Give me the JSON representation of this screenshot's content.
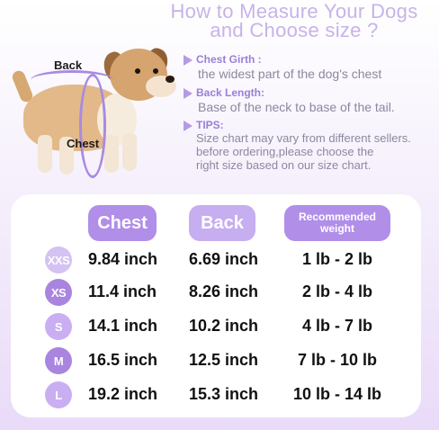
{
  "title": {
    "line1": "How to Measure Your Dogs",
    "line2": "and Choose size ?"
  },
  "illustration": {
    "back_label": "Back",
    "chest_label": "Chest"
  },
  "info": {
    "chest_girth": {
      "heading": "Chest Girth :",
      "text": "the widest part of the dog's chest"
    },
    "back_length": {
      "heading": "Back Length:",
      "text": "Base of the neck to base of the tail."
    },
    "tips": {
      "heading": "TIPS:",
      "lines": [
        "Size chart may vary from different sellers.",
        "before ordering,please choose the",
        "right size based on our size chart."
      ]
    }
  },
  "table": {
    "headers": {
      "chest": "Chest",
      "back": "Back",
      "weight_line1": "Recommended",
      "weight_line2": "weight"
    },
    "rows": [
      {
        "size": "XXS",
        "chest": "9.84 inch",
        "back": "6.69 inch",
        "weight": "1 lb - 2 lb",
        "badge_color": "#d4c2f2"
      },
      {
        "size": "XS",
        "chest": "11.4 inch",
        "back": "8.26 inch",
        "weight": "2 lb - 4 lb",
        "badge_color": "#a985e0"
      },
      {
        "size": "S",
        "chest": "14.1 inch",
        "back": "10.2 inch",
        "weight": "4 lb - 7 lb",
        "badge_color": "#caaef2"
      },
      {
        "size": "M",
        "chest": "16.5 inch",
        "back": "12.5 inch",
        "weight": "7 lb - 10 lb",
        "badge_color": "#a985e0"
      },
      {
        "size": "L",
        "chest": "19.2 inch",
        "back": "15.3 inch",
        "weight": "10 lb - 14 lb",
        "badge_color": "#caaef2"
      }
    ]
  }
}
